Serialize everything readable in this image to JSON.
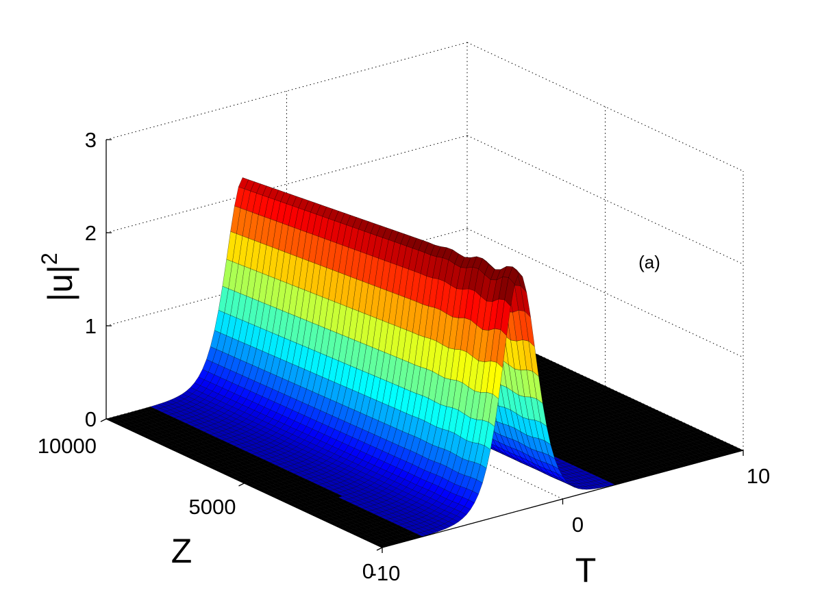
{
  "chart_data": {
    "type": "surface",
    "panel_label": "(a)",
    "axes": {
      "x": {
        "label": "T",
        "ticks": [
          -10,
          0,
          10
        ],
        "tick_labels": [
          "-10",
          "0",
          "10"
        ],
        "range": [
          -10,
          10
        ]
      },
      "y": {
        "label": "Z",
        "ticks": [
          0,
          5000,
          10000
        ],
        "tick_labels": [
          "0",
          "5000",
          "10000"
        ],
        "range": [
          0,
          10000
        ]
      },
      "z": {
        "label": "|u|",
        "label_superscript": "2",
        "ticks": [
          0,
          1,
          2,
          3
        ],
        "tick_labels": [
          "0",
          "1",
          "2",
          "3"
        ],
        "range": [
          0,
          3
        ]
      }
    },
    "grid": true,
    "colormap": "jet",
    "surface": {
      "description_of_shape": "single Gaussian-like pulse along T, propagating along Z",
      "peak_center_T": -2.4,
      "peak_width_T": 1.3,
      "peak_height_at_Z0": 2.55,
      "peak_height_at_Z10000": 2.2,
      "ripple_near_Z0": 0.06,
      "floor_value": 0,
      "colors": {
        "low": "#00008f",
        "mid": "#00ffff",
        "high_mid": "#ffff00",
        "high": "#800000",
        "floor": "#000000"
      }
    }
  }
}
